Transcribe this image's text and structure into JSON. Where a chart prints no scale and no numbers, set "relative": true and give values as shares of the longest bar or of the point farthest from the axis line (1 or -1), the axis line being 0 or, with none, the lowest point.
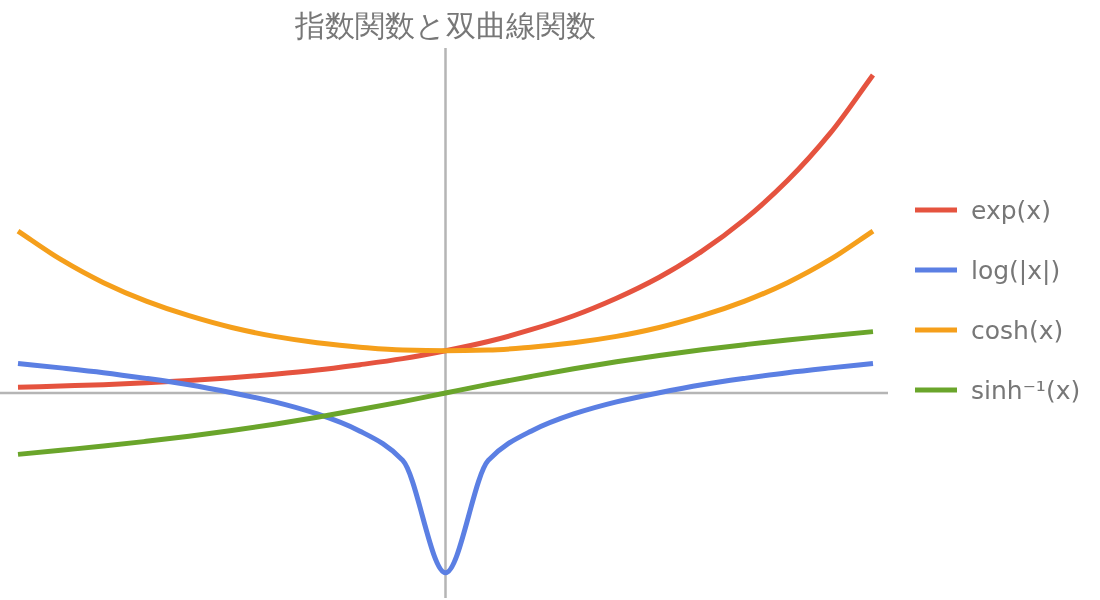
{
  "chart_data": {
    "type": "line",
    "title": "指数関数と双曲線関数",
    "relative": true,
    "legend": "right",
    "categories": [
      null,
      null,
      null,
      null,
      null,
      null,
      null,
      null,
      null,
      null,
      null,
      null,
      null,
      null,
      null,
      null,
      null,
      null,
      null,
      null,
      null
    ],
    "series": [
      {
        "name": "exp(x)",
        "color": "#e5533f",
        "values": [
          0.018,
          0.022,
          0.026,
          0.032,
          0.039,
          0.048,
          0.059,
          0.072,
          0.089,
          0.108,
          0.133,
          0.162,
          0.199,
          0.243,
          0.298,
          0.364,
          0.446,
          0.546,
          0.668,
          0.817,
          1
        ]
      },
      {
        "name": "log(|x|)",
        "color": "#5b7fe3",
        "values": [
          0.093,
          0.079,
          0.064,
          0.046,
          0.026,
          0.001,
          -0.028,
          -0.066,
          -0.12,
          -0.212,
          -0.565,
          -0.212,
          -0.12,
          -0.066,
          -0.028,
          0.001,
          0.026,
          0.046,
          0.064,
          0.079,
          0.093
        ]
      },
      {
        "name": "cosh(x)",
        "color": "#f59f1b",
        "values": [
          0.509,
          0.42,
          0.347,
          0.289,
          0.243,
          0.206,
          0.178,
          0.158,
          0.144,
          0.135,
          0.133,
          0.135,
          0.144,
          0.158,
          0.178,
          0.206,
          0.243,
          0.289,
          0.347,
          0.42,
          0.509
        ]
      },
      {
        "name": "sinh⁻¹(x)",
        "color": "#6aa52b",
        "values": [
          -0.193,
          -0.18,
          -0.167,
          -0.152,
          -0.136,
          -0.118,
          -0.098,
          -0.076,
          -0.052,
          -0.027,
          0,
          0.027,
          0.052,
          0.076,
          0.098,
          0.118,
          0.136,
          0.152,
          0.167,
          0.18,
          0.193
        ]
      }
    ]
  }
}
